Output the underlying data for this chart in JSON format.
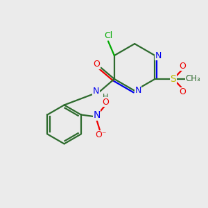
{
  "bg_color": "#ebebeb",
  "bond_color": "#2d6b2d",
  "n_color": "#0000ee",
  "o_color": "#ee0000",
  "cl_color": "#00aa00",
  "s_color": "#bbbb00",
  "lw": 1.6,
  "figsize": [
    3.0,
    3.0
  ],
  "dpi": 100,
  "xlim": [
    0,
    10
  ],
  "ylim": [
    0,
    10
  ]
}
